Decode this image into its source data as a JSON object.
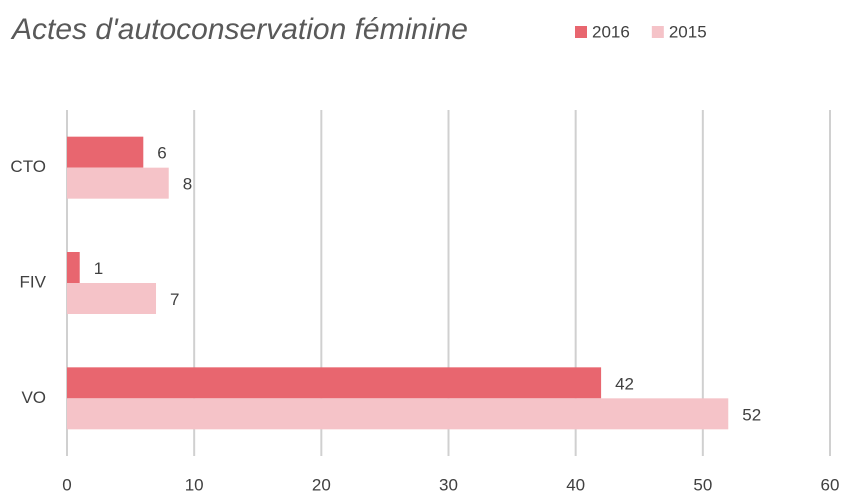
{
  "chart_data": {
    "type": "hbar",
    "title": "Actes d'autoconservation féminine",
    "categories": [
      "CTO",
      "FIV",
      "VO"
    ],
    "series": [
      {
        "name": "2016",
        "color": "#e8666f",
        "values": [
          6,
          1,
          42
        ]
      },
      {
        "name": "2015",
        "color": "#f5c3c8",
        "values": [
          8,
          7,
          52
        ]
      }
    ],
    "xlim": [
      0,
      60
    ],
    "xticks": [
      0,
      10,
      20,
      30,
      40,
      50,
      60
    ],
    "grid": true,
    "legend": "top-right"
  }
}
